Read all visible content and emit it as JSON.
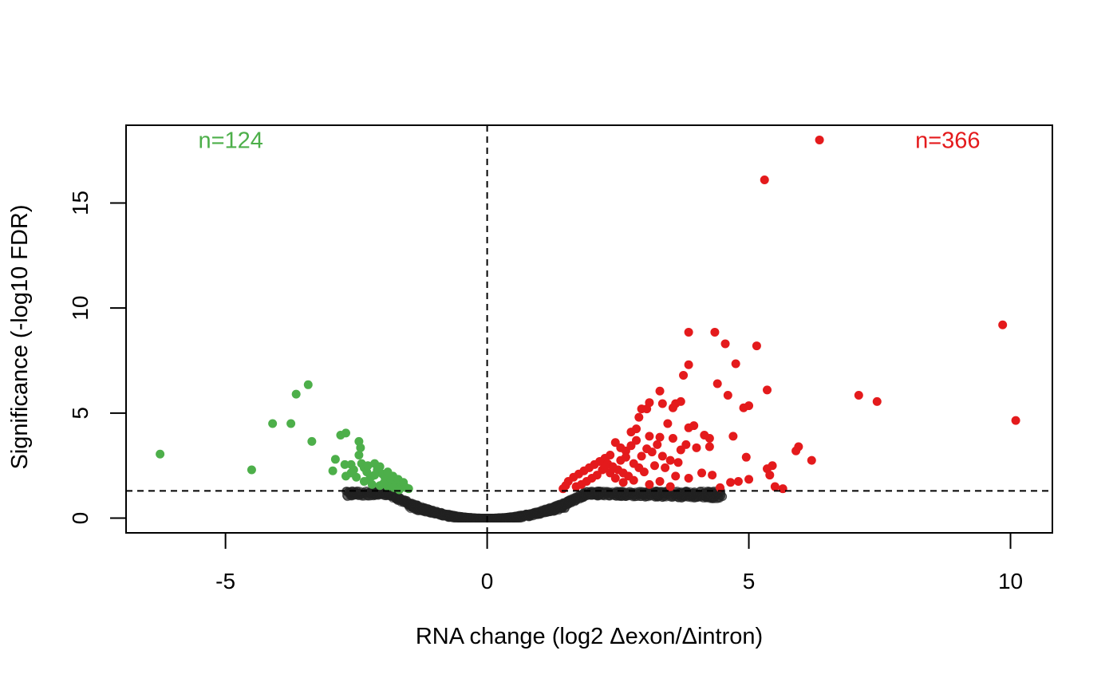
{
  "chart_data": {
    "type": "scatter",
    "title": "",
    "xlabel": "RNA change (log2 Δexon/Δintron)",
    "ylabel": "Significance (-log10 FDR)",
    "xlim": [
      -6.9,
      10.8
    ],
    "ylim": [
      -0.7,
      18.7
    ],
    "xticks": [
      -5,
      0,
      5,
      10
    ],
    "yticks": [
      0,
      5,
      10,
      15
    ],
    "grid": false,
    "reference_lines": {
      "vertical_x": 0,
      "horizontal_y": 1.3
    },
    "annotations": [
      {
        "text": "n=124",
        "x": -4.9,
        "y": 18.0,
        "color": "#4daf4a"
      },
      {
        "text": "n=366",
        "x": 8.8,
        "y": 18.0,
        "color": "#e41a1c"
      }
    ],
    "series": [
      {
        "group": "down",
        "color": "#4daf4a",
        "points": [
          [
            -6.25,
            3.05
          ],
          [
            -4.5,
            2.3
          ],
          [
            -4.1,
            4.5
          ],
          [
            -3.75,
            4.5
          ],
          [
            -3.65,
            5.9
          ],
          [
            -3.42,
            6.35
          ],
          [
            -3.35,
            3.65
          ],
          [
            -2.95,
            2.25
          ],
          [
            -2.9,
            2.8
          ],
          [
            -2.8,
            3.95
          ],
          [
            -2.7,
            4.05
          ],
          [
            -2.72,
            2.55
          ],
          [
            -2.7,
            2.0
          ],
          [
            -2.6,
            2.55
          ],
          [
            -2.45,
            3.65
          ],
          [
            -2.42,
            3.35
          ],
          [
            -2.45,
            3.0
          ],
          [
            -2.4,
            2.6
          ],
          [
            -2.35,
            2.4
          ],
          [
            -2.3,
            2.2
          ],
          [
            -2.28,
            2.5
          ],
          [
            -2.25,
            1.85
          ],
          [
            -2.2,
            2.0
          ],
          [
            -2.15,
            2.6
          ],
          [
            -2.1,
            2.3
          ],
          [
            -2.05,
            2.45
          ],
          [
            -2.0,
            2.1
          ],
          [
            -1.95,
            1.9
          ],
          [
            -1.9,
            2.2
          ],
          [
            -1.85,
            1.75
          ],
          [
            -1.8,
            2.0
          ],
          [
            -1.75,
            1.6
          ],
          [
            -1.7,
            1.85
          ],
          [
            -1.65,
            1.5
          ],
          [
            -1.6,
            1.7
          ],
          [
            -1.55,
            1.45
          ],
          [
            -1.5,
            1.4
          ],
          [
            -2.5,
            1.95
          ],
          [
            -2.35,
            1.75
          ],
          [
            -2.2,
            1.6
          ],
          [
            -2.05,
            1.55
          ],
          [
            -1.9,
            1.5
          ],
          [
            -2.6,
            2.15
          ],
          [
            -2.55,
            2.3
          ],
          [
            -2.15,
            2.05
          ],
          [
            -1.98,
            1.65
          ],
          [
            -1.78,
            1.45
          ],
          [
            -1.68,
            1.35
          ]
        ]
      },
      {
        "group": "up",
        "color": "#e41a1c",
        "points": [
          [
            6.35,
            18.0
          ],
          [
            5.3,
            16.1
          ],
          [
            9.85,
            9.2
          ],
          [
            10.1,
            4.65
          ],
          [
            7.1,
            5.85
          ],
          [
            7.45,
            5.55
          ],
          [
            3.85,
            8.85
          ],
          [
            4.35,
            8.85
          ],
          [
            4.55,
            8.3
          ],
          [
            5.15,
            8.2
          ],
          [
            4.75,
            7.35
          ],
          [
            3.85,
            7.3
          ],
          [
            3.75,
            6.8
          ],
          [
            4.4,
            6.4
          ],
          [
            5.35,
            6.1
          ],
          [
            3.3,
            6.05
          ],
          [
            4.6,
            5.85
          ],
          [
            3.1,
            5.5
          ],
          [
            3.35,
            5.45
          ],
          [
            3.6,
            5.45
          ],
          [
            3.7,
            5.55
          ],
          [
            3.55,
            5.25
          ],
          [
            4.9,
            5.25
          ],
          [
            5.0,
            5.35
          ],
          [
            2.95,
            5.2
          ],
          [
            3.05,
            5.2
          ],
          [
            2.9,
            4.8
          ],
          [
            3.45,
            4.5
          ],
          [
            3.85,
            4.3
          ],
          [
            3.95,
            4.4
          ],
          [
            2.75,
            4.1
          ],
          [
            2.85,
            4.25
          ],
          [
            3.1,
            3.9
          ],
          [
            3.3,
            3.85
          ],
          [
            3.55,
            3.8
          ],
          [
            4.15,
            3.95
          ],
          [
            4.25,
            3.8
          ],
          [
            4.7,
            3.9
          ],
          [
            5.95,
            3.4
          ],
          [
            5.9,
            3.2
          ],
          [
            6.2,
            2.75
          ],
          [
            4.25,
            3.4
          ],
          [
            4.0,
            3.35
          ],
          [
            3.8,
            3.5
          ],
          [
            3.25,
            3.5
          ],
          [
            2.45,
            3.6
          ],
          [
            2.55,
            3.35
          ],
          [
            2.65,
            3.2
          ],
          [
            2.35,
            3.0
          ],
          [
            2.25,
            2.85
          ],
          [
            2.15,
            2.7
          ],
          [
            2.05,
            2.55
          ],
          [
            1.95,
            2.4
          ],
          [
            1.85,
            2.25
          ],
          [
            1.75,
            2.1
          ],
          [
            1.65,
            1.95
          ],
          [
            1.55,
            1.75
          ],
          [
            1.5,
            1.55
          ],
          [
            1.45,
            1.4
          ],
          [
            2.3,
            2.6
          ],
          [
            2.4,
            2.45
          ],
          [
            2.5,
            2.3
          ],
          [
            2.6,
            2.15
          ],
          [
            2.7,
            2.0
          ],
          [
            2.8,
            2.6
          ],
          [
            2.9,
            2.4
          ],
          [
            3.0,
            2.2
          ],
          [
            3.2,
            2.5
          ],
          [
            3.4,
            2.4
          ],
          [
            3.6,
            2.0
          ],
          [
            3.65,
            2.65
          ],
          [
            3.85,
            1.9
          ],
          [
            4.1,
            2.15
          ],
          [
            4.3,
            2.05
          ],
          [
            4.45,
            1.45
          ],
          [
            4.65,
            1.7
          ],
          [
            4.8,
            1.75
          ],
          [
            5.0,
            1.85
          ],
          [
            5.35,
            2.35
          ],
          [
            5.45,
            2.5
          ],
          [
            5.4,
            2.05
          ],
          [
            5.5,
            1.5
          ],
          [
            5.65,
            1.4
          ],
          [
            4.95,
            2.9
          ],
          [
            2.2,
            2.3
          ],
          [
            2.1,
            2.05
          ],
          [
            2.0,
            1.9
          ],
          [
            1.9,
            1.75
          ],
          [
            1.8,
            1.6
          ],
          [
            1.7,
            1.5
          ],
          [
            2.55,
            2.75
          ],
          [
            2.65,
            2.9
          ],
          [
            2.75,
            3.45
          ],
          [
            2.85,
            3.7
          ],
          [
            3.15,
            3.15
          ],
          [
            3.35,
            2.95
          ],
          [
            3.5,
            2.75
          ],
          [
            3.7,
            3.25
          ],
          [
            2.45,
            1.9
          ],
          [
            2.6,
            1.7
          ],
          [
            2.8,
            1.8
          ],
          [
            3.1,
            1.6
          ],
          [
            3.3,
            1.75
          ],
          [
            3.5,
            1.5
          ],
          [
            2.35,
            2.15
          ],
          [
            2.95,
            2.95
          ],
          [
            3.05,
            3.3
          ],
          [
            2.25,
            2.45
          ]
        ]
      }
    ],
    "background_points": {
      "color": "#222222",
      "description_x_range": [
        -2.8,
        4.5
      ]
    }
  }
}
